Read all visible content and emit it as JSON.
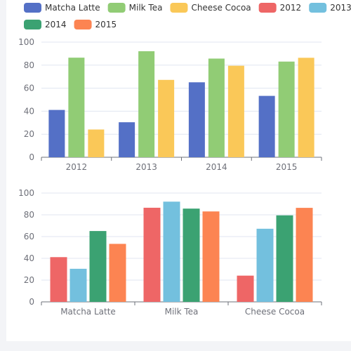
{
  "colors": {
    "matcha": "#5470c6",
    "milk": "#91cc75",
    "cocoa": "#fac858",
    "y2012": "#ee6666",
    "y2013": "#73c0de",
    "y2014": "#3ba272",
    "y2015": "#fc8452",
    "axis": "#6e7079",
    "grid": "#e0e6f1"
  },
  "legend": [
    {
      "name": "Matcha Latte",
      "color_key": "matcha"
    },
    {
      "name": "Milk Tea",
      "color_key": "milk"
    },
    {
      "name": "Cheese Cocoa",
      "color_key": "cocoa"
    },
    {
      "name": "2012",
      "color_key": "y2012"
    },
    {
      "name": "2013",
      "color_key": "y2013"
    },
    {
      "name": "2014",
      "color_key": "y2014"
    },
    {
      "name": "2015",
      "color_key": "y2015"
    }
  ],
  "chart_data": [
    {
      "type": "bar",
      "title": "",
      "categories": [
        "2012",
        "2013",
        "2014",
        "2015"
      ],
      "series": [
        {
          "name": "Matcha Latte",
          "color_key": "matcha",
          "values": [
            41.1,
            30.4,
            65.1,
            53.3
          ]
        },
        {
          "name": "Milk Tea",
          "color_key": "milk",
          "values": [
            86.5,
            92.1,
            85.7,
            83.1
          ]
        },
        {
          "name": "Cheese Cocoa",
          "color_key": "cocoa",
          "values": [
            24.1,
            67.2,
            79.5,
            86.4
          ]
        }
      ],
      "ylim": [
        0,
        100
      ],
      "yticks": [
        0,
        20,
        40,
        60,
        80,
        100
      ],
      "grid": true,
      "legend_position": "top"
    },
    {
      "type": "bar",
      "title": "",
      "categories": [
        "Matcha Latte",
        "Milk Tea",
        "Cheese Cocoa"
      ],
      "series": [
        {
          "name": "2012",
          "color_key": "y2012",
          "values": [
            41.1,
            86.5,
            24.1
          ]
        },
        {
          "name": "2013",
          "color_key": "y2013",
          "values": [
            30.4,
            92.1,
            67.2
          ]
        },
        {
          "name": "2014",
          "color_key": "y2014",
          "values": [
            65.1,
            85.7,
            79.5
          ]
        },
        {
          "name": "2015",
          "color_key": "y2015",
          "values": [
            53.3,
            83.1,
            86.4
          ]
        }
      ],
      "ylim": [
        0,
        100
      ],
      "yticks": [
        0,
        20,
        40,
        60,
        80,
        100
      ],
      "grid": true,
      "legend_position": "top"
    }
  ]
}
